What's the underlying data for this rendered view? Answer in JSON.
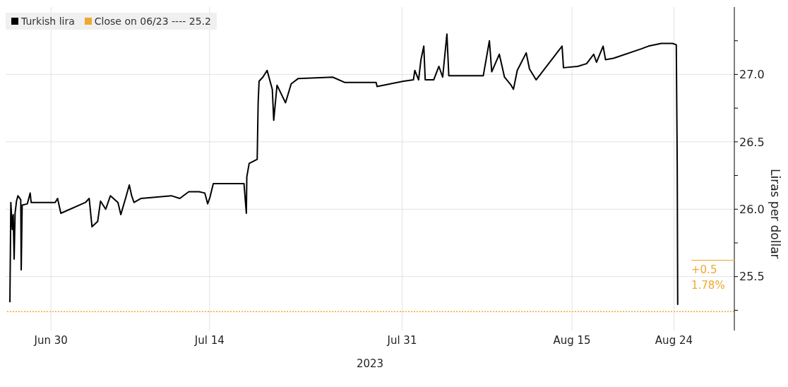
{
  "chart_data": {
    "type": "line",
    "xlabel": "2023",
    "ylabel": "Liras per dollar",
    "legend": "top left",
    "grid": true,
    "x": [
      "2023-06-26T09:00",
      "2023-06-26T11:00",
      "2023-06-26T14:00",
      "2023-06-26T16:00",
      "2023-06-26T18:00",
      "2023-06-26T20:00",
      "2023-06-26T23:00",
      "2023-06-27T02:00",
      "2023-06-27T08:00",
      "2023-06-27T09:00",
      "2023-06-27T11:00",
      "2023-06-27T22:00",
      "2023-06-28T04:00",
      "2023-06-28T06:00",
      "2023-06-29T06:00",
      "2023-06-30T09:00",
      "2023-06-30T14:00",
      "2023-06-30T21:00",
      "2023-07-03T01:00",
      "2023-07-03T09:00",
      "2023-07-03T15:00",
      "2023-07-04T03:00",
      "2023-07-04T09:00",
      "2023-07-04T20:00",
      "2023-07-05T06:00",
      "2023-07-05T22:00",
      "2023-07-06T04:00",
      "2023-07-06T14:00",
      "2023-07-06T22:00",
      "2023-07-07T03:00",
      "2023-07-07T08:00",
      "2023-07-07T23:00",
      "2023-07-10T15:00",
      "2023-07-11T09:00",
      "2023-07-12T04:00",
      "2023-07-13T02:00",
      "2023-07-13T14:00",
      "2023-07-13T20:00",
      "2023-07-14T01:00",
      "2023-07-14T08:00",
      "2023-07-17T01:00",
      "2023-07-17T06:00",
      "2023-07-17T07:00",
      "2023-07-17T12:00",
      "2023-07-18T05:00",
      "2023-07-18T07:00",
      "2023-07-18T09:00",
      "2023-07-18T17:00",
      "2023-07-19T02:00",
      "2023-07-19T13:00",
      "2023-07-19T16:00",
      "2023-07-19T23:00",
      "2023-07-20T17:00",
      "2023-07-21T05:00",
      "2023-07-21T20:00",
      "2023-07-24T21:00",
      "2023-07-25T23:00",
      "2023-07-27T08:00",
      "2023-07-28T17:00",
      "2023-07-28T19:00",
      "2023-07-31T03:00",
      "2023-08-01T00:00",
      "2023-08-01T03:00",
      "2023-08-01T11:00",
      "2023-08-01T16:00",
      "2023-08-01T22:00",
      "2023-08-02T01:00",
      "2023-08-02T19:00",
      "2023-08-03T06:00",
      "2023-08-03T14:00",
      "2023-08-03T23:00",
      "2023-08-04T03:00",
      "2023-08-07T04:00",
      "2023-08-07T17:00",
      "2023-08-07T22:00",
      "2023-08-08T14:00",
      "2023-08-09T01:00",
      "2023-08-09T15:00",
      "2023-08-09T20:00",
      "2023-08-10T04:00",
      "2023-08-10T23:00",
      "2023-08-11T06:00",
      "2023-08-11T20:00",
      "2023-08-14T03:00",
      "2023-08-14T06:00",
      "2023-08-15T12:00",
      "2023-08-16T07:00",
      "2023-08-16T22:00",
      "2023-08-17T04:00",
      "2023-08-17T18:00",
      "2023-08-17T23:00",
      "2023-08-18T16:00",
      "2023-08-21T03:00",
      "2023-08-21T18:00",
      "2023-08-22T21:00",
      "2023-08-23T21:00",
      "2023-08-24T05:00",
      "2023-08-24T07:00",
      "2023-08-24T08:00"
    ],
    "series": [
      {
        "name": "Turkish lira",
        "color": "#000000",
        "values": [
          25.31,
          26.05,
          25.85,
          25.96,
          25.63,
          25.97,
          26.06,
          26.1,
          26.07,
          25.55,
          26.03,
          26.04,
          26.12,
          26.05,
          26.05,
          26.05,
          26.08,
          25.97,
          26.05,
          26.08,
          25.87,
          25.91,
          26.06,
          26.0,
          26.1,
          26.05,
          25.96,
          26.08,
          26.18,
          26.1,
          26.05,
          26.08,
          26.1,
          26.08,
          26.13,
          26.13,
          26.12,
          26.04,
          26.09,
          26.19,
          26.19,
          25.97,
          26.24,
          26.34,
          26.37,
          26.79,
          26.95,
          26.98,
          27.03,
          26.89,
          26.66,
          26.92,
          26.79,
          26.93,
          26.97,
          26.98,
          26.94,
          26.94,
          26.94,
          26.91,
          26.95,
          26.96,
          27.03,
          26.96,
          27.11,
          27.21,
          26.96,
          26.96,
          27.06,
          26.98,
          27.3,
          26.99,
          26.99,
          27.25,
          27.02,
          27.15,
          26.98,
          26.92,
          26.89,
          27.03,
          27.16,
          27.04,
          26.96,
          27.21,
          27.05,
          27.06,
          27.08,
          27.15,
          27.09,
          27.21,
          27.11,
          27.12,
          27.19,
          27.21,
          27.23,
          27.23,
          27.22,
          26.33,
          25.29
        ]
      }
    ],
    "ref_lines": [
      {
        "axis": "y",
        "value": 25.24,
        "label": "Close on 06/23 ---- 25.2",
        "color": "#f0a830",
        "line_style": "dotted"
      }
    ],
    "annotations": [
      "+0.5",
      "1.78%"
    ],
    "xlim": [
      "2023-06-26T00:00",
      "2023-08-29T08:00"
    ],
    "xticks": [
      {
        "value": "2023-06-30",
        "label": "Jun 30"
      },
      {
        "value": "2023-07-14",
        "label": "Jul 14"
      },
      {
        "value": "2023-07-31",
        "label": "Jul 31"
      },
      {
        "value": "2023-08-15",
        "label": "Aug 15"
      },
      {
        "value": "2023-08-24",
        "label": "Aug 24"
      }
    ],
    "ylim": [
      25.1,
      27.5
    ],
    "yticks": [
      {
        "value": 25.25,
        "label": null
      },
      {
        "value": 25.5,
        "label": "25.5"
      },
      {
        "value": 25.75,
        "label": null
      },
      {
        "value": 26.0,
        "label": "26.0"
      },
      {
        "value": 26.25,
        "label": null
      },
      {
        "value": 26.5,
        "label": "26.5"
      },
      {
        "value": 26.75,
        "label": null
      },
      {
        "value": 27.0,
        "label": "27.0"
      },
      {
        "value": 27.25,
        "label": null
      }
    ]
  }
}
